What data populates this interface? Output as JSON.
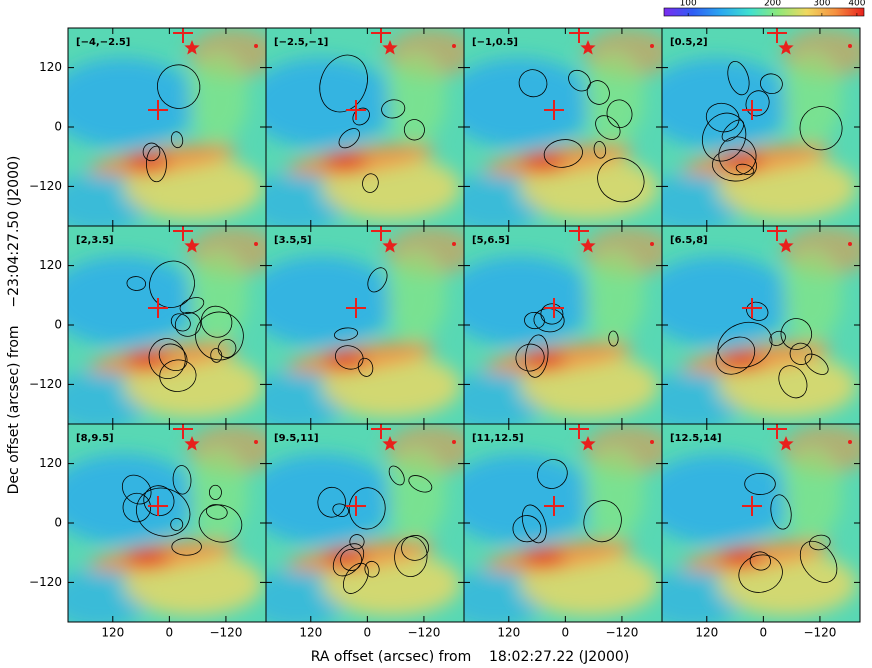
{
  "figure": {
    "x_axis_label": "RA offset (arcsec) from    18:02:27.22 (J2000)",
    "y_axis_label": "Dec offset (arcsec) from    −23:04:27.50 (J2000)",
    "xlim": [
      215,
      -205
    ],
    "ylim": [
      -200,
      200
    ],
    "xticks": [
      120,
      0,
      {
        "value": -120,
        "label": "−120"
      }
    ],
    "yticks": [
      120,
      0,
      {
        "value": -120,
        "label": "−120"
      }
    ],
    "panels": [
      "[−4,−2.5]",
      "[−2.5,−1]",
      "[−1,0.5]",
      "[0.5,2]",
      "[2,3.5]",
      "[3.5,5]",
      "[5,6.5]",
      "[6.5,8]",
      "[8,9.5]",
      "[9.5,11]",
      "[11,12.5]",
      "[12.5,14]"
    ],
    "colorbar": {
      "clim": [
        82,
        424
      ],
      "log": true,
      "ticks": [
        100,
        200,
        300,
        400
      ],
      "colormap": [
        "#7b2cf0",
        "#2f5df5",
        "#2aa8f0",
        "#3fe0d0",
        "#8fe87a",
        "#f0d860",
        "#f59040",
        "#e8201c"
      ]
    }
  }
}
